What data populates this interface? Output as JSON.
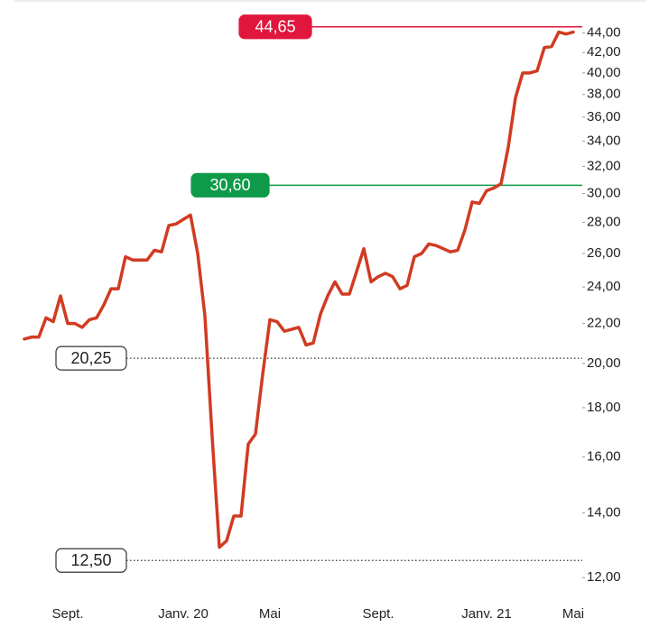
{
  "chart_data": {
    "type": "line",
    "log_y": true,
    "categories": [
      null,
      null,
      null,
      null,
      null,
      null,
      "Sept.",
      null,
      null,
      null,
      null,
      null,
      null,
      null,
      null,
      null,
      null,
      null,
      null,
      null,
      null,
      null,
      "Janv. 20",
      null,
      null,
      null,
      null,
      null,
      null,
      null,
      null,
      null,
      null,
      null,
      "Mai",
      null,
      null,
      null,
      null,
      null,
      null,
      null,
      null,
      null,
      null,
      null,
      null,
      null,
      null,
      "Sept.",
      null,
      null,
      null,
      null,
      null,
      null,
      null,
      null,
      null,
      null,
      null,
      null,
      null,
      null,
      "Janv. 21",
      null,
      null,
      null,
      null,
      null,
      null,
      null,
      null,
      null,
      null,
      null,
      "Mai"
    ],
    "series": [
      {
        "color": "#d13b22",
        "values": [
          21.2,
          21.3,
          21.3,
          22.3,
          22.1,
          23.5,
          22.0,
          22.0,
          21.8,
          22.2,
          22.3,
          23.0,
          23.9,
          23.9,
          25.8,
          25.6,
          25.6,
          25.6,
          26.2,
          26.1,
          27.8,
          27.9,
          28.2,
          28.5,
          26.0,
          22.4,
          16.8,
          12.9,
          13.1,
          13.9,
          13.9,
          16.5,
          16.9,
          19.5,
          22.2,
          22.1,
          21.6,
          21.7,
          21.8,
          20.9,
          21.0,
          22.5,
          23.5,
          24.3,
          23.6,
          23.6,
          24.9,
          26.3,
          24.3,
          24.6,
          24.8,
          24.6,
          23.9,
          24.1,
          25.8,
          26.0,
          26.6,
          26.5,
          26.3,
          26.1,
          26.2,
          27.5,
          29.4,
          29.3,
          30.2,
          30.4,
          30.7,
          33.5,
          37.7,
          40.0,
          40.0,
          40.2,
          42.5,
          42.6,
          44.1,
          43.9,
          44.1
        ]
      }
    ],
    "ylim": [
      11.6,
      45.5
    ],
    "yticks": [
      {
        "value": 12,
        "label": "12,00"
      },
      {
        "value": 14,
        "label": "14,00"
      },
      {
        "value": 16,
        "label": "16,00"
      },
      {
        "value": 18,
        "label": "18,00"
      },
      {
        "value": 20,
        "label": "20,00"
      },
      {
        "value": 22,
        "label": "22,00"
      },
      {
        "value": 24,
        "label": "24,00"
      },
      {
        "value": 26,
        "label": "26,00"
      },
      {
        "value": 28,
        "label": "28,00"
      },
      {
        "value": 30,
        "label": "30,00"
      },
      {
        "value": 32,
        "label": "32,00"
      },
      {
        "value": 34,
        "label": "34,00"
      },
      {
        "value": 36,
        "label": "36,00"
      },
      {
        "value": 38,
        "label": "38,00"
      },
      {
        "value": 40,
        "label": "40,00"
      },
      {
        "value": 42,
        "label": "42,00"
      },
      {
        "value": 44,
        "label": "44,00"
      }
    ],
    "annotations": [
      {
        "value": 44.65,
        "label": "44,65",
        "color": "#e0163c",
        "style": "solid"
      },
      {
        "value": 30.6,
        "label": "30,60",
        "color": "#0e9a48",
        "style": "solid"
      },
      {
        "value": 20.25,
        "label": "20,25",
        "color": "#333333",
        "style": "dotted"
      },
      {
        "value": 12.5,
        "label": "12,50",
        "color": "#333333",
        "style": "dotted"
      }
    ]
  }
}
